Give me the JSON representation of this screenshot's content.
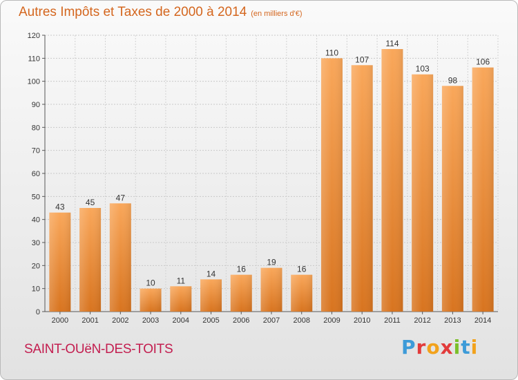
{
  "chart_data": {
    "type": "bar",
    "title": "Autres Impôts et Taxes de 2000 à 2014",
    "subtitle": "(en milliers d'€)",
    "categories": [
      "2000",
      "2001",
      "2002",
      "2003",
      "2004",
      "2005",
      "2006",
      "2007",
      "2008",
      "2009",
      "2010",
      "2011",
      "2012",
      "2013",
      "2014"
    ],
    "values": [
      43,
      45,
      47,
      10,
      11,
      14,
      16,
      19,
      16,
      110,
      107,
      114,
      103,
      98,
      106
    ],
    "ylim": [
      0,
      120
    ],
    "yticks": [
      0,
      10,
      20,
      30,
      40,
      50,
      60,
      70,
      80,
      90,
      100,
      110,
      120
    ],
    "grid": true,
    "bar_color": "#f0923e"
  },
  "footer": {
    "commune": "SAINT-OUëN-DES-TOITS",
    "brand": "Proxiti",
    "brand_colors": [
      "#3d9bd8",
      "#e23b3b",
      "#f2a21c",
      "#e23b3b",
      "#7bbf2a",
      "#3d9bd8",
      "#f2a21c"
    ]
  }
}
